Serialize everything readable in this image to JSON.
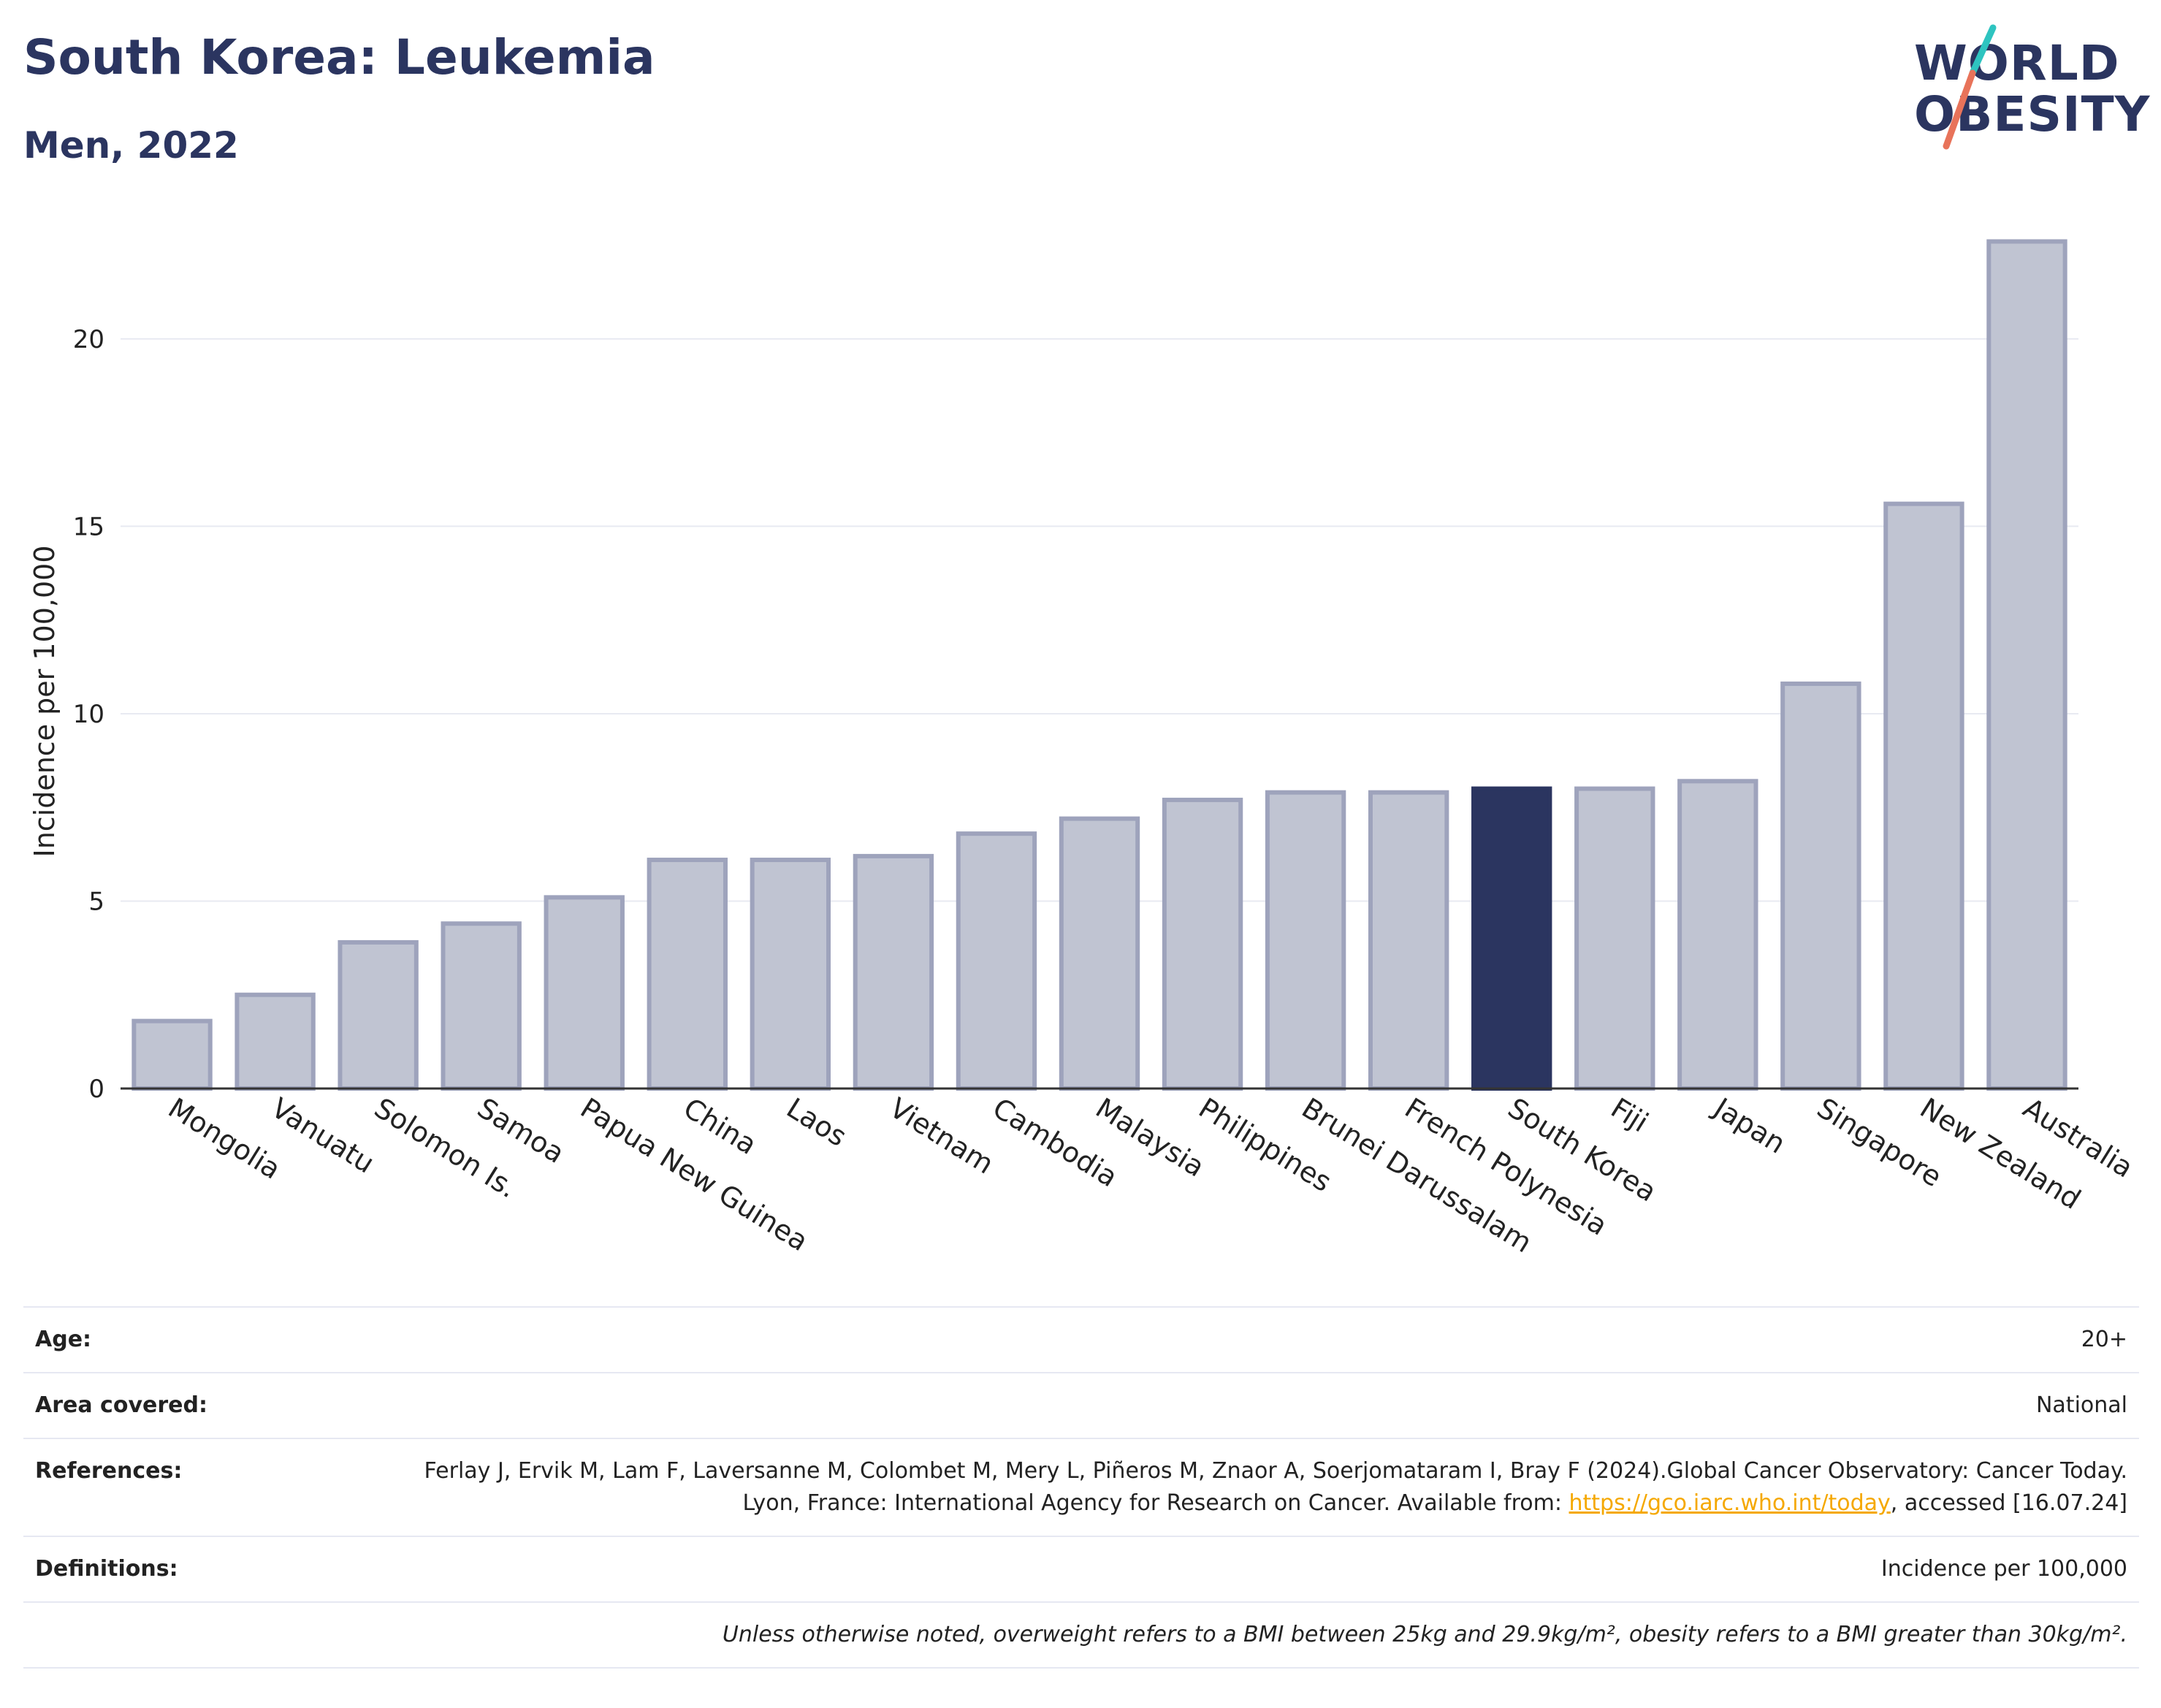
{
  "header": {
    "title": "South Korea: Leukemia",
    "subtitle": "Men, 2022"
  },
  "logo": {
    "line1": "WORLD",
    "line2": "OBESITY",
    "colors": {
      "text": "#2b3560",
      "slash_top": "#2ec4c0",
      "slash_bottom": "#e8735a"
    }
  },
  "chart_data": {
    "type": "bar",
    "ylabel": "Incidence per 100,000",
    "xlabel": "",
    "ylim": [
      0,
      23
    ],
    "yticks": [
      0,
      5,
      10,
      15,
      20
    ],
    "grid": true,
    "highlight": "South Korea",
    "colors": {
      "bar": "#c0c4d2",
      "bar_border": "#9ea3bc",
      "highlight": "#2b3560"
    },
    "categories": [
      "Mongolia",
      "Vanuatu",
      "Solomon Is.",
      "Samoa",
      "Papua New Guinea",
      "China",
      "Laos",
      "Vietnam",
      "Cambodia",
      "Malaysia",
      "Philippines",
      "Brunei Darussalam",
      "French Polynesia",
      "South Korea",
      "Fiji",
      "Japan",
      "Singapore",
      "New Zealand",
      "Australia"
    ],
    "values": [
      1.8,
      2.5,
      3.9,
      4.4,
      5.1,
      6.1,
      6.1,
      6.2,
      6.8,
      7.2,
      7.7,
      7.9,
      7.9,
      8.0,
      8.0,
      8.2,
      10.8,
      15.6,
      22.6
    ]
  },
  "info": {
    "age_label": "Age:",
    "age_value": "20+",
    "area_label": "Area covered:",
    "area_value": "National",
    "references_label": "References:",
    "references_text_1": "Ferlay J, Ervik M, Lam F, Laversanne M, Colombet M, Mery L, Piñeros M, Znaor A, Soerjomataram I, Bray F (2024).Global Cancer Observatory: Cancer Today. Lyon, France: International Agency for Research on Cancer. Available from: ",
    "references_link": "https://gco.iarc.who.int/today",
    "references_text_2": ", accessed [16.07.24]",
    "definitions_label": "Definitions:",
    "definitions_value": "Incidence per 100,000",
    "footnote": "Unless otherwise noted, overweight refers to a BMI between 25kg and 29.9kg/m², obesity refers to a BMI greater than 30kg/m²."
  }
}
